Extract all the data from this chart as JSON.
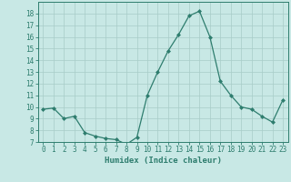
{
  "x": [
    0,
    1,
    2,
    3,
    4,
    5,
    6,
    7,
    8,
    9,
    10,
    11,
    12,
    13,
    14,
    15,
    16,
    17,
    18,
    19,
    20,
    21,
    22,
    23
  ],
  "y": [
    9.8,
    9.9,
    9.0,
    9.2,
    7.8,
    7.5,
    7.3,
    7.2,
    6.8,
    7.4,
    11.0,
    13.0,
    14.8,
    16.2,
    17.8,
    18.2,
    16.0,
    12.2,
    11.0,
    10.0,
    9.8,
    9.2,
    8.7,
    10.6
  ],
  "line_color": "#2e7d6e",
  "marker": "D",
  "marker_size": 2,
  "bg_color": "#c8e8e5",
  "grid_color": "#a8ccc8",
  "xlabel": "Humidex (Indice chaleur)",
  "xlim": [
    -0.5,
    23.5
  ],
  "ylim": [
    7,
    19
  ],
  "yticks": [
    7,
    8,
    9,
    10,
    11,
    12,
    13,
    14,
    15,
    16,
    17,
    18
  ],
  "xticks": [
    0,
    1,
    2,
    3,
    4,
    5,
    6,
    7,
    8,
    9,
    10,
    11,
    12,
    13,
    14,
    15,
    16,
    17,
    18,
    19,
    20,
    21,
    22,
    23
  ],
  "tick_color": "#2e7d6e",
  "label_fontsize": 6.5,
  "tick_fontsize": 5.5
}
